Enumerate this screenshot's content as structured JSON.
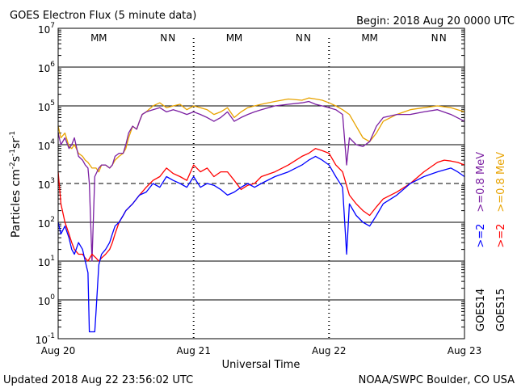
{
  "header": {
    "title": "GOES Electron Flux (5 minute data)",
    "begin": "Begin: 2018 Aug 20 0000 UTC"
  },
  "footer": {
    "updated": "Updated 2018 Aug 22 23:56:02 UTC",
    "credit": "NOAA/SWPC Boulder, CO USA"
  },
  "chart_data": {
    "type": "line",
    "title": "GOES Electron Flux (5 minute data)",
    "xlabel": "Universal Time",
    "ylabel": "Particles cm-2s-1sr-1",
    "ylabel_parts": {
      "main": "Particles cm",
      "e1": "-2",
      "s": "s",
      "e2": "-1",
      "sr": "sr",
      "e3": "-1"
    },
    "y_scale": "log",
    "ylim": [
      0.1,
      10000000
    ],
    "y_ticks": [
      {
        "base": "10",
        "exp": "-1"
      },
      {
        "base": "10",
        "exp": "0"
      },
      {
        "base": "10",
        "exp": "1"
      },
      {
        "base": "10",
        "exp": "2"
      },
      {
        "base": "10",
        "exp": "3"
      },
      {
        "base": "10",
        "exp": "4"
      },
      {
        "base": "10",
        "exp": "5"
      },
      {
        "base": "10",
        "exp": "6"
      },
      {
        "base": "10",
        "exp": "7"
      }
    ],
    "x_unit": "days since Aug 20 0000 UTC",
    "xlim": [
      0,
      3
    ],
    "x_ticks": [
      "Aug 20",
      "Aug 21",
      "Aug 22",
      "Aug 23"
    ],
    "threshold_line": {
      "value": 1000,
      "style": "dashed"
    },
    "markers": [
      {
        "label": "M",
        "x": 0.27,
        "color": "#0000ff"
      },
      {
        "label": "M",
        "x": 0.33,
        "color": "#ff0000"
      },
      {
        "label": "N",
        "x": 0.78,
        "color": "#0000ff"
      },
      {
        "label": "N",
        "x": 0.84,
        "color": "#ff0000"
      },
      {
        "label": "M",
        "x": 1.27,
        "color": "#0000ff"
      },
      {
        "label": "M",
        "x": 1.33,
        "color": "#ff0000"
      },
      {
        "label": "N",
        "x": 1.78,
        "color": "#0000ff"
      },
      {
        "label": "N",
        "x": 1.84,
        "color": "#ff0000"
      },
      {
        "label": "M",
        "x": 2.27,
        "color": "#0000ff"
      },
      {
        "label": "M",
        "x": 2.33,
        "color": "#ff0000"
      },
      {
        "label": "N",
        "x": 2.78,
        "color": "#0000ff"
      },
      {
        "label": "N",
        "x": 2.84,
        "color": "#ff0000"
      }
    ],
    "legend": {
      "placement": "right",
      "columns": [
        {
          "satellite": "GOES14",
          "entries": [
            {
              "label": ">=2",
              "color": "#0000ff"
            },
            {
              "label": ">=0.8 MeV",
              "color": "#7b1fa2"
            }
          ]
        },
        {
          "satellite": "GOES15",
          "entries": [
            {
              "label": ">=2",
              "color": "#ff0000"
            },
            {
              "label": ">=0.8 MeV",
              "color": "#e8a300"
            }
          ]
        }
      ]
    },
    "series": [
      {
        "name": ">=0.8 MeV",
        "color": "#e8a300",
        "x": [
          0,
          0.02,
          0.05,
          0.08,
          0.1,
          0.12,
          0.15,
          0.18,
          0.2,
          0.22,
          0.25,
          0.28,
          0.3,
          0.32,
          0.35,
          0.38,
          0.4,
          0.42,
          0.45,
          0.48,
          0.5,
          0.52,
          0.55,
          0.58,
          0.6,
          0.62,
          0.65,
          0.7,
          0.75,
          0.8,
          0.85,
          0.9,
          0.95,
          1,
          1.05,
          1.1,
          1.15,
          1.2,
          1.25,
          1.3,
          1.35,
          1.4,
          1.45,
          1.5,
          1.6,
          1.7,
          1.8,
          1.85,
          1.9,
          1.95,
          2,
          2.05,
          2.1,
          2.15,
          2.2,
          2.25,
          2.3,
          2.35,
          2.4,
          2.5,
          2.6,
          2.7,
          2.8,
          2.9,
          3
        ],
        "y": [
          30000,
          15000,
          20000,
          9000,
          8000,
          10000,
          6000,
          5000,
          4000,
          3500,
          2500,
          2500,
          2000,
          3000,
          3000,
          2500,
          3000,
          4000,
          5000,
          6000,
          8000,
          15000,
          30000,
          25000,
          40000,
          60000,
          70000,
          100000,
          120000,
          90000,
          100000,
          110000,
          80000,
          100000,
          90000,
          80000,
          60000,
          70000,
          90000,
          50000,
          70000,
          90000,
          100000,
          110000,
          130000,
          150000,
          140000,
          160000,
          150000,
          140000,
          120000,
          100000,
          80000,
          60000,
          30000,
          15000,
          12000,
          20000,
          40000,
          60000,
          80000,
          90000,
          100000,
          90000,
          70000
        ]
      },
      {
        "name": ">=0.8 MeV",
        "color": "#7b1fa2",
        "x": [
          0,
          0.02,
          0.05,
          0.08,
          0.1,
          0.12,
          0.15,
          0.18,
          0.2,
          0.22,
          0.23,
          0.25,
          0.27,
          0.3,
          0.32,
          0.35,
          0.38,
          0.4,
          0.42,
          0.45,
          0.48,
          0.5,
          0.52,
          0.55,
          0.58,
          0.6,
          0.62,
          0.65,
          0.7,
          0.75,
          0.8,
          0.85,
          0.9,
          0.95,
          1,
          1.05,
          1.1,
          1.15,
          1.2,
          1.25,
          1.3,
          1.35,
          1.4,
          1.45,
          1.5,
          1.6,
          1.7,
          1.8,
          1.85,
          1.9,
          1.95,
          2,
          2.05,
          2.1,
          2.13,
          2.15,
          2.2,
          2.25,
          2.3,
          2.35,
          2.4,
          2.5,
          2.6,
          2.7,
          2.8,
          2.9,
          3
        ],
        "y": [
          20000,
          10000,
          15000,
          8000,
          10000,
          15000,
          5000,
          4000,
          3000,
          2500,
          1000,
          10,
          1500,
          2500,
          3000,
          3000,
          2500,
          3000,
          5000,
          6000,
          6000,
          10000,
          20000,
          30000,
          25000,
          40000,
          60000,
          70000,
          80000,
          90000,
          70000,
          80000,
          70000,
          60000,
          70000,
          60000,
          50000,
          40000,
          50000,
          70000,
          40000,
          50000,
          60000,
          70000,
          80000,
          100000,
          110000,
          120000,
          130000,
          110000,
          100000,
          90000,
          80000,
          60000,
          3000,
          15000,
          10000,
          9000,
          12000,
          30000,
          50000,
          60000,
          60000,
          70000,
          80000,
          60000,
          40000
        ]
      },
      {
        "name": ">=2",
        "color": "#ff0000",
        "x": [
          0,
          0.02,
          0.05,
          0.08,
          0.1,
          0.12,
          0.15,
          0.18,
          0.2,
          0.22,
          0.25,
          0.28,
          0.3,
          0.32,
          0.35,
          0.38,
          0.4,
          0.42,
          0.45,
          0.48,
          0.5,
          0.55,
          0.6,
          0.65,
          0.7,
          0.75,
          0.8,
          0.85,
          0.9,
          0.95,
          1,
          1.05,
          1.1,
          1.15,
          1.2,
          1.25,
          1.3,
          1.35,
          1.4,
          1.45,
          1.5,
          1.6,
          1.7,
          1.8,
          1.85,
          1.9,
          1.95,
          2,
          2.05,
          2.1,
          2.15,
          2.2,
          2.25,
          2.3,
          2.35,
          2.4,
          2.5,
          2.6,
          2.7,
          2.8,
          2.85,
          2.9,
          2.95,
          3
        ],
        "y": [
          2000,
          300,
          100,
          50,
          30,
          20,
          15,
          15,
          12,
          10,
          15,
          12,
          10,
          12,
          15,
          20,
          30,
          50,
          100,
          150,
          200,
          300,
          500,
          800,
          1200,
          1500,
          2500,
          1800,
          1500,
          1200,
          3000,
          2000,
          2500,
          1500,
          2000,
          2000,
          1200,
          700,
          900,
          1000,
          1500,
          2000,
          3000,
          5000,
          6000,
          8000,
          7000,
          6000,
          3000,
          2000,
          500,
          300,
          200,
          150,
          250,
          400,
          600,
          1000,
          2000,
          3500,
          4000,
          3800,
          3500,
          3000
        ]
      },
      {
        "name": ">=2",
        "color": "#0000ff",
        "x": [
          0,
          0.02,
          0.05,
          0.08,
          0.1,
          0.12,
          0.15,
          0.18,
          0.2,
          0.22,
          0.23,
          0.25,
          0.27,
          0.28,
          0.3,
          0.32,
          0.35,
          0.38,
          0.4,
          0.42,
          0.45,
          0.48,
          0.5,
          0.55,
          0.6,
          0.65,
          0.7,
          0.75,
          0.8,
          0.85,
          0.9,
          0.95,
          1,
          1.05,
          1.1,
          1.15,
          1.2,
          1.25,
          1.3,
          1.35,
          1.4,
          1.45,
          1.5,
          1.6,
          1.7,
          1.8,
          1.85,
          1.9,
          1.95,
          2,
          2.05,
          2.1,
          2.13,
          2.15,
          2.2,
          2.25,
          2.3,
          2.35,
          2.4,
          2.5,
          2.6,
          2.7,
          2.8,
          2.9,
          2.95,
          3
        ],
        "y": [
          100,
          50,
          80,
          40,
          20,
          15,
          30,
          20,
          10,
          5,
          0.15,
          0.15,
          0.15,
          0.5,
          8,
          15,
          20,
          30,
          50,
          80,
          100,
          150,
          200,
          300,
          500,
          600,
          1000,
          800,
          1500,
          1200,
          1000,
          800,
          1500,
          800,
          1000,
          900,
          700,
          500,
          600,
          800,
          1000,
          800,
          1000,
          1500,
          2000,
          3000,
          4000,
          5000,
          4000,
          3000,
          1500,
          800,
          15,
          300,
          150,
          100,
          80,
          150,
          300,
          500,
          1000,
          1500,
          2000,
          2500,
          2000,
          1500
        ]
      }
    ]
  }
}
